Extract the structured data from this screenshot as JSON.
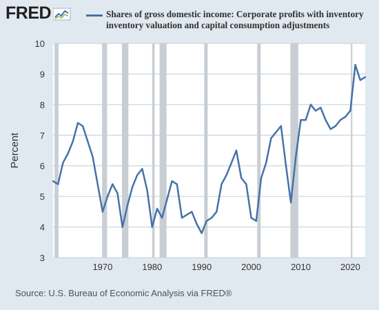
{
  "logo": {
    "text": "FRED",
    "icon": "fred-sparkline-icon"
  },
  "source": "Source: U.S. Bureau of Economic Analysis via FRED®",
  "colors": {
    "series": "#4572a7",
    "recession": "#c8ced4",
    "background": "#e1e9f0",
    "plot": "#ffffff",
    "grid": "#c5cdd4"
  },
  "chart_data": {
    "type": "line",
    "title_lines": [
      "Shares of gross domestic income: Corporate profits with inventory",
      "inventory valuation and capital consumption adjustments"
    ],
    "xlabel": "",
    "ylabel": "Percent",
    "xlim": [
      1960,
      2023
    ],
    "ylim": [
      3,
      10
    ],
    "y_ticks": [
      3,
      4,
      5,
      6,
      7,
      8,
      9,
      10
    ],
    "x_ticks": [
      1970,
      1980,
      1990,
      2000,
      2010,
      2020
    ],
    "grid": "horizontal",
    "legend": "top",
    "recessions": [
      [
        1960.3,
        1961.1
      ],
      [
        1969.9,
        1970.9
      ],
      [
        1973.9,
        1975.2
      ],
      [
        1980.0,
        1980.5
      ],
      [
        1981.5,
        1982.9
      ],
      [
        1990.5,
        1991.2
      ],
      [
        2001.2,
        2001.9
      ],
      [
        2007.9,
        2009.5
      ],
      [
        2020.1,
        2020.4
      ]
    ],
    "series": [
      {
        "name": "Shares of gross domestic income: Corporate profits with inventory",
        "x": [
          1960,
          1961,
          1962,
          1963,
          1964,
          1965,
          1966,
          1967,
          1968,
          1969,
          1970,
          1971,
          1972,
          1973,
          1974,
          1975,
          1976,
          1977,
          1978,
          1979,
          1980,
          1981,
          1982,
          1983,
          1984,
          1985,
          1986,
          1987,
          1988,
          1989,
          1990,
          1991,
          1992,
          1993,
          1994,
          1995,
          1996,
          1997,
          1998,
          1999,
          2000,
          2001,
          2002,
          2003,
          2004,
          2005,
          2006,
          2007,
          2008,
          2009,
          2010,
          2011,
          2012,
          2013,
          2014,
          2015,
          2016,
          2017,
          2018,
          2019,
          2020,
          2021,
          2022,
          2023
        ],
        "y": [
          5.5,
          5.4,
          6.1,
          6.4,
          6.8,
          7.4,
          7.3,
          6.8,
          6.3,
          5.4,
          4.5,
          5.0,
          5.4,
          5.1,
          4.0,
          4.7,
          5.3,
          5.7,
          5.9,
          5.2,
          4.0,
          4.6,
          4.3,
          4.9,
          5.5,
          5.4,
          4.3,
          4.4,
          4.5,
          4.1,
          3.8,
          4.2,
          4.3,
          4.5,
          5.4,
          5.7,
          6.1,
          6.5,
          5.6,
          5.4,
          4.3,
          4.2,
          5.6,
          6.1,
          6.9,
          7.1,
          7.3,
          6.0,
          4.8,
          6.3,
          7.5,
          7.5,
          8.0,
          7.8,
          7.9,
          7.5,
          7.2,
          7.3,
          7.5,
          7.6,
          7.8,
          9.3,
          8.8,
          8.9
        ]
      }
    ]
  }
}
